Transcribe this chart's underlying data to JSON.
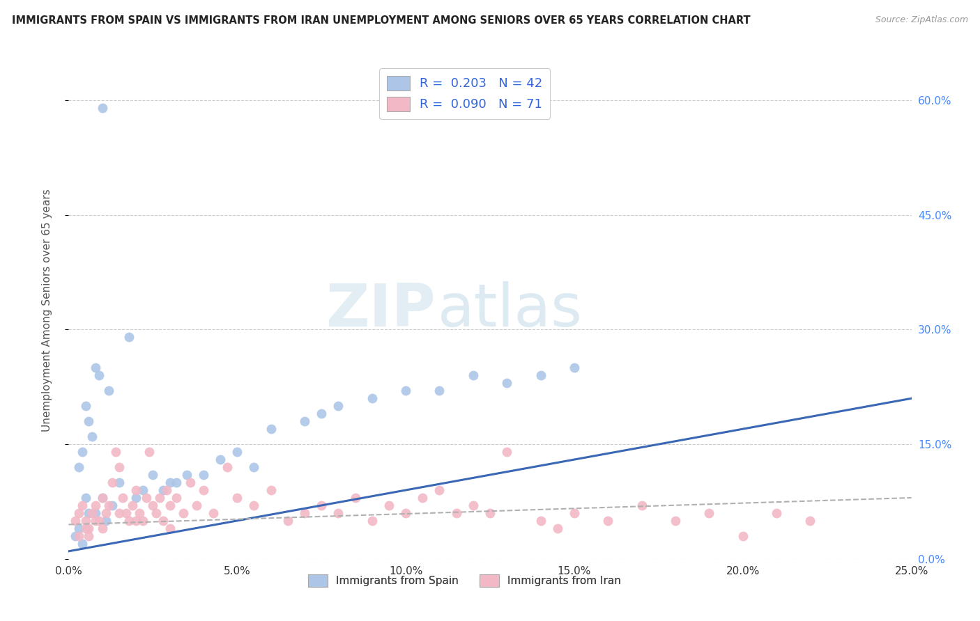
{
  "title": "IMMIGRANTS FROM SPAIN VS IMMIGRANTS FROM IRAN UNEMPLOYMENT AMONG SENIORS OVER 65 YEARS CORRELATION CHART",
  "source": "Source: ZipAtlas.com",
  "ylabel": "Unemployment Among Seniors over 65 years",
  "r_spain": 0.203,
  "n_spain": 42,
  "r_iran": 0.09,
  "n_iran": 71,
  "spain_color": "#adc6e8",
  "iran_color": "#f2b8c6",
  "spain_line_color": "#3a68b5",
  "iran_line_color": "#b0b0b0",
  "legend_label_spain": "Immigrants from Spain",
  "legend_label_iran": "Immigrants from Iran",
  "watermark_zip": "ZIP",
  "watermark_atlas": "atlas",
  "xlim": [
    0,
    25
  ],
  "ylim": [
    0,
    65
  ],
  "x_ticks": [
    0,
    5,
    10,
    15,
    20,
    25
  ],
  "x_tick_labels": [
    "0.0%",
    "5.0%",
    "10.0%",
    "15.0%",
    "20.0%",
    "25.0%"
  ],
  "y_ticks": [
    0,
    15,
    30,
    45,
    60
  ],
  "y_tick_labels": [
    "0.0%",
    "15.0%",
    "30.0%",
    "45.0%",
    "60.0%"
  ],
  "spain_x": [
    1.0,
    0.8,
    1.2,
    0.5,
    0.6,
    0.7,
    0.9,
    0.4,
    0.3,
    0.5,
    0.6,
    0.8,
    1.0,
    1.1,
    1.3,
    1.5,
    1.8,
    2.0,
    2.2,
    2.5,
    2.8,
    3.0,
    3.2,
    3.5,
    4.0,
    4.5,
    5.0,
    5.5,
    6.0,
    7.0,
    7.5,
    8.0,
    9.0,
    10.0,
    11.0,
    12.0,
    13.0,
    14.0,
    15.0,
    0.3,
    0.4,
    0.2
  ],
  "spain_y": [
    59.0,
    25.0,
    22.0,
    20.0,
    18.0,
    16.0,
    24.0,
    14.0,
    12.0,
    8.0,
    6.0,
    6.0,
    8.0,
    5.0,
    7.0,
    10.0,
    29.0,
    8.0,
    9.0,
    11.0,
    9.0,
    10.0,
    10.0,
    11.0,
    11.0,
    13.0,
    14.0,
    12.0,
    17.0,
    18.0,
    19.0,
    20.0,
    21.0,
    22.0,
    22.0,
    24.0,
    23.0,
    24.0,
    25.0,
    4.0,
    2.0,
    3.0
  ],
  "iran_x": [
    0.2,
    0.3,
    0.4,
    0.5,
    0.6,
    0.7,
    0.8,
    0.9,
    1.0,
    1.1,
    1.2,
    1.3,
    1.4,
    1.5,
    1.6,
    1.7,
    1.8,
    1.9,
    2.0,
    2.1,
    2.2,
    2.3,
    2.4,
    2.5,
    2.6,
    2.7,
    2.8,
    2.9,
    3.0,
    3.2,
    3.4,
    3.6,
    3.8,
    4.0,
    4.3,
    4.7,
    5.0,
    5.5,
    6.0,
    6.5,
    7.0,
    7.5,
    8.0,
    8.5,
    9.0,
    9.5,
    10.0,
    10.5,
    11.0,
    11.5,
    12.0,
    12.5,
    13.0,
    14.0,
    14.5,
    15.0,
    16.0,
    17.0,
    18.0,
    19.0,
    20.0,
    21.0,
    22.0,
    0.3,
    0.5,
    0.6,
    0.8,
    1.0,
    1.5,
    2.0,
    3.0
  ],
  "iran_y": [
    5.0,
    6.0,
    7.0,
    5.0,
    4.0,
    6.0,
    7.0,
    5.0,
    8.0,
    6.0,
    7.0,
    10.0,
    14.0,
    12.0,
    8.0,
    6.0,
    5.0,
    7.0,
    9.0,
    6.0,
    5.0,
    8.0,
    14.0,
    7.0,
    6.0,
    8.0,
    5.0,
    9.0,
    7.0,
    8.0,
    6.0,
    10.0,
    7.0,
    9.0,
    6.0,
    12.0,
    8.0,
    7.0,
    9.0,
    5.0,
    6.0,
    7.0,
    6.0,
    8.0,
    5.0,
    7.0,
    6.0,
    8.0,
    9.0,
    6.0,
    7.0,
    6.0,
    14.0,
    5.0,
    4.0,
    6.0,
    5.0,
    7.0,
    5.0,
    6.0,
    3.0,
    6.0,
    5.0,
    3.0,
    4.0,
    3.0,
    5.0,
    4.0,
    6.0,
    5.0,
    4.0
  ],
  "spain_trend_x": [
    0,
    25
  ],
  "spain_trend_y": [
    1.0,
    21.0
  ],
  "iran_trend_x": [
    0,
    25
  ],
  "iran_trend_y": [
    4.5,
    8.0
  ]
}
